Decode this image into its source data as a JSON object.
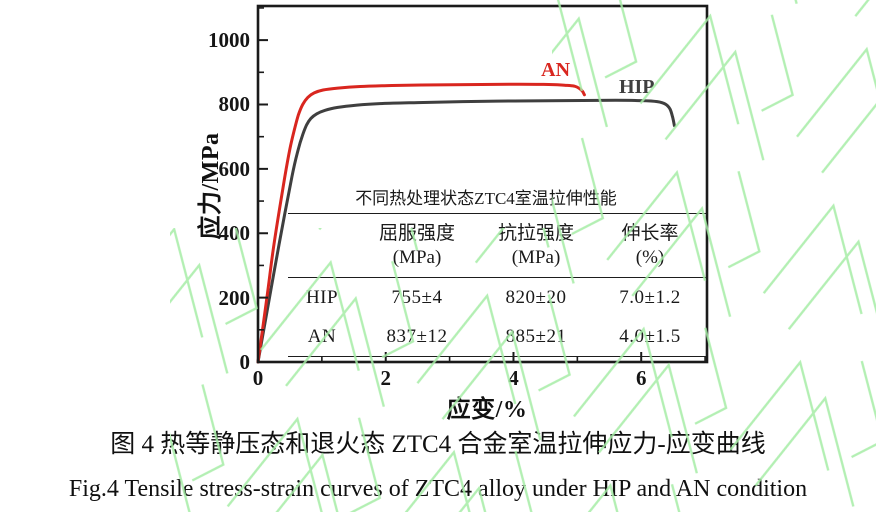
{
  "table": {
    "title": "不同热处理状态ZTC4室温拉伸性能",
    "headers": [
      [
        "屈服强度",
        "(MPa)"
      ],
      [
        "抗拉强度",
        "(MPa)"
      ],
      [
        "伸长率",
        "(%)"
      ]
    ],
    "rows": [
      {
        "label": "HIP",
        "values": [
          "755±4",
          "820±20",
          "7.0±1.2"
        ]
      },
      {
        "label": "AN",
        "values": [
          "837±12",
          "885±21",
          "4.0±1.5"
        ]
      }
    ]
  },
  "caption": {
    "zh": "图 4 热等静压态和退火态 ZTC4 合金室温拉伸应力-应变曲线",
    "en": "Fig.4 Tensile stress-strain curves of ZTC4 alloy under HIP and AN condition"
  },
  "colors": {
    "an": "#d9261f",
    "hip": "#3f3f3f",
    "axis": "#1a1a1a",
    "watermark": "#a6eda6"
  },
  "chart_data": {
    "type": "line",
    "title": "",
    "xlabel": "应变/%",
    "ylabel": "应力/MPa",
    "xlim": [
      0,
      7.03
    ],
    "ylim": [
      0,
      1106
    ],
    "grid": false,
    "legend_position": "inline-annotations",
    "x_major_ticks": [
      0,
      2,
      4,
      6
    ],
    "x_minor_ticks": [
      1,
      3,
      5,
      7
    ],
    "y_major_ticks": [
      0,
      200,
      400,
      600,
      800,
      1000
    ],
    "y_minor_ticks": [
      100,
      300,
      500,
      700,
      900,
      1100
    ],
    "series": [
      {
        "name": "HIP",
        "color": "#3f3f3f",
        "points": [
          [
            0,
            0
          ],
          [
            0.18,
            200
          ],
          [
            0.33,
            366
          ],
          [
            0.53,
            575
          ],
          [
            0.63,
            660
          ],
          [
            0.7,
            706
          ],
          [
            0.76,
            736
          ],
          [
            0.83,
            757
          ],
          [
            0.92,
            771
          ],
          [
            1.05,
            782
          ],
          [
            1.25,
            791
          ],
          [
            1.55,
            798
          ],
          [
            1.95,
            803
          ],
          [
            2.5,
            806
          ],
          [
            3.2,
            809
          ],
          [
            4.0,
            811
          ],
          [
            4.8,
            812
          ],
          [
            5.6,
            813
          ],
          [
            6.0,
            812
          ],
          [
            6.25,
            809
          ],
          [
            6.38,
            801
          ],
          [
            6.45,
            786
          ],
          [
            6.49,
            762
          ],
          [
            6.52,
            734
          ]
        ]
      },
      {
        "name": "AN",
        "color": "#d9261f",
        "points": [
          [
            0,
            0
          ],
          [
            0.14,
            200
          ],
          [
            0.25,
            366
          ],
          [
            0.42,
            575
          ],
          [
            0.5,
            662
          ],
          [
            0.57,
            722
          ],
          [
            0.63,
            766
          ],
          [
            0.7,
            800
          ],
          [
            0.78,
            822
          ],
          [
            0.88,
            836
          ],
          [
            1.02,
            845
          ],
          [
            1.25,
            851
          ],
          [
            1.6,
            856
          ],
          [
            2.1,
            859
          ],
          [
            2.8,
            861
          ],
          [
            3.5,
            862
          ],
          [
            4.1,
            863
          ],
          [
            4.55,
            862
          ],
          [
            4.8,
            860
          ],
          [
            4.95,
            857
          ],
          [
            5.03,
            850
          ],
          [
            5.08,
            841
          ],
          [
            5.11,
            830
          ]
        ]
      }
    ],
    "annotations": [
      {
        "text": "AN",
        "x": 4.66,
        "y": 907,
        "color": "#d9261f"
      },
      {
        "text": "HIP",
        "x": 5.93,
        "y": 855,
        "color": "#3f3f3f"
      }
    ]
  }
}
